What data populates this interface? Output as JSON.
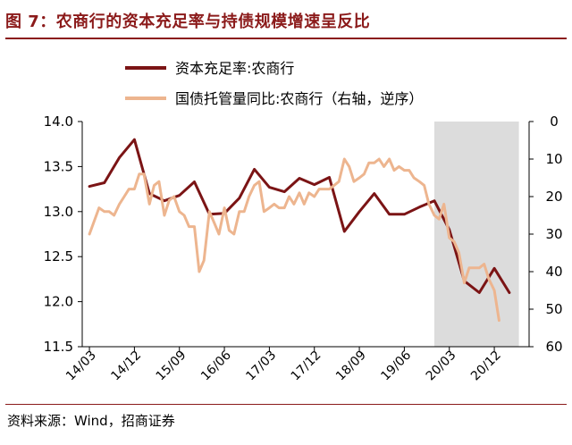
{
  "figure": {
    "title": "图 7：农商行的资本充足率与持债规模增速呈反比",
    "source": "资料来源：Wind，招商证券"
  },
  "colors": {
    "title": "#8B1A1A",
    "series_capital": "#7B1415",
    "series_bonds": "#EDB58F",
    "shade": "#DCDCDC"
  },
  "chart_data": {
    "type": "line",
    "legend_position": "top",
    "shaded_region": {
      "x_start": 2019.92,
      "x_end": 2021.33
    },
    "x_ticks": [
      {
        "label": "14/03",
        "x": 2014.17
      },
      {
        "label": "14/12",
        "x": 2014.92
      },
      {
        "label": "15/09",
        "x": 2015.67
      },
      {
        "label": "16/06",
        "x": 2016.42
      },
      {
        "label": "17/03",
        "x": 2017.17
      },
      {
        "label": "17/12",
        "x": 2017.92
      },
      {
        "label": "18/09",
        "x": 2018.67
      },
      {
        "label": "19/06",
        "x": 2019.42
      },
      {
        "label": "20/03",
        "x": 2020.17
      },
      {
        "label": "20/12",
        "x": 2020.92
      }
    ],
    "y_left": {
      "min": 11.5,
      "max": 14.0,
      "ticks": [
        "11.5",
        "12.0",
        "12.5",
        "13.0",
        "13.5",
        "14.0"
      ]
    },
    "y_right": {
      "min": 0,
      "max": 60,
      "inverted": true,
      "ticks": [
        "0",
        "10",
        "20",
        "30",
        "40",
        "50",
        "60"
      ]
    },
    "series": [
      {
        "name": "资本充足率:农商行",
        "axis": "left",
        "points": [
          [
            2014.17,
            13.28
          ],
          [
            2014.42,
            13.32
          ],
          [
            2014.67,
            13.6
          ],
          [
            2014.92,
            13.8
          ],
          [
            2015.17,
            13.2
          ],
          [
            2015.42,
            13.12
          ],
          [
            2015.67,
            13.18
          ],
          [
            2015.92,
            13.33
          ],
          [
            2016.17,
            12.97
          ],
          [
            2016.42,
            12.98
          ],
          [
            2016.67,
            13.15
          ],
          [
            2016.92,
            13.47
          ],
          [
            2017.17,
            13.27
          ],
          [
            2017.42,
            13.22
          ],
          [
            2017.67,
            13.37
          ],
          [
            2017.92,
            13.3
          ],
          [
            2018.17,
            13.38
          ],
          [
            2018.42,
            12.78
          ],
          [
            2018.67,
            13.0
          ],
          [
            2018.92,
            13.2
          ],
          [
            2019.17,
            12.97
          ],
          [
            2019.42,
            12.97
          ],
          [
            2019.67,
            13.05
          ],
          [
            2019.92,
            13.12
          ],
          [
            2020.17,
            12.8
          ],
          [
            2020.42,
            12.23
          ],
          [
            2020.67,
            12.1
          ],
          [
            2020.92,
            12.37
          ],
          [
            2021.17,
            12.1
          ]
        ]
      },
      {
        "name": "国债托管量同比:农商行（右轴，逆序）",
        "axis": "right",
        "points": [
          [
            2014.17,
            30
          ],
          [
            2014.33,
            23
          ],
          [
            2014.42,
            24
          ],
          [
            2014.5,
            24
          ],
          [
            2014.58,
            25
          ],
          [
            2014.67,
            22
          ],
          [
            2014.75,
            20
          ],
          [
            2014.83,
            18
          ],
          [
            2014.92,
            18
          ],
          [
            2015.0,
            14
          ],
          [
            2015.08,
            14
          ],
          [
            2015.17,
            22
          ],
          [
            2015.25,
            17
          ],
          [
            2015.33,
            16
          ],
          [
            2015.42,
            25
          ],
          [
            2015.5,
            21
          ],
          [
            2015.58,
            20
          ],
          [
            2015.67,
            24
          ],
          [
            2015.75,
            25
          ],
          [
            2015.83,
            28
          ],
          [
            2015.92,
            28
          ],
          [
            2016.0,
            40
          ],
          [
            2016.08,
            37
          ],
          [
            2016.17,
            24
          ],
          [
            2016.25,
            27
          ],
          [
            2016.33,
            30
          ],
          [
            2016.42,
            23
          ],
          [
            2016.5,
            29
          ],
          [
            2016.58,
            30
          ],
          [
            2016.67,
            24
          ],
          [
            2016.75,
            24
          ],
          [
            2016.83,
            20
          ],
          [
            2016.92,
            17
          ],
          [
            2017.0,
            16
          ],
          [
            2017.08,
            24
          ],
          [
            2017.17,
            23
          ],
          [
            2017.25,
            22
          ],
          [
            2017.33,
            23
          ],
          [
            2017.42,
            23
          ],
          [
            2017.5,
            20
          ],
          [
            2017.58,
            22
          ],
          [
            2017.67,
            19
          ],
          [
            2017.75,
            22
          ],
          [
            2017.83,
            19
          ],
          [
            2017.92,
            20
          ],
          [
            2018.0,
            18
          ],
          [
            2018.08,
            18
          ],
          [
            2018.17,
            18
          ],
          [
            2018.25,
            17
          ],
          [
            2018.33,
            16
          ],
          [
            2018.42,
            10
          ],
          [
            2018.5,
            12
          ],
          [
            2018.58,
            16
          ],
          [
            2018.67,
            15
          ],
          [
            2018.75,
            14
          ],
          [
            2018.83,
            11
          ],
          [
            2018.92,
            11
          ],
          [
            2019.0,
            10
          ],
          [
            2019.08,
            12
          ],
          [
            2019.17,
            10
          ],
          [
            2019.25,
            13
          ],
          [
            2019.33,
            12
          ],
          [
            2019.42,
            13
          ],
          [
            2019.5,
            13
          ],
          [
            2019.58,
            15
          ],
          [
            2019.67,
            16
          ],
          [
            2019.75,
            17
          ],
          [
            2019.83,
            22
          ],
          [
            2019.92,
            25
          ],
          [
            2020.0,
            26
          ],
          [
            2020.08,
            22
          ],
          [
            2020.17,
            31
          ],
          [
            2020.25,
            32
          ],
          [
            2020.33,
            35
          ],
          [
            2020.42,
            43
          ],
          [
            2020.5,
            39
          ],
          [
            2020.58,
            39
          ],
          [
            2020.67,
            39
          ],
          [
            2020.75,
            38
          ],
          [
            2020.83,
            42
          ],
          [
            2020.92,
            45
          ],
          [
            2021.0,
            53
          ]
        ]
      }
    ]
  }
}
